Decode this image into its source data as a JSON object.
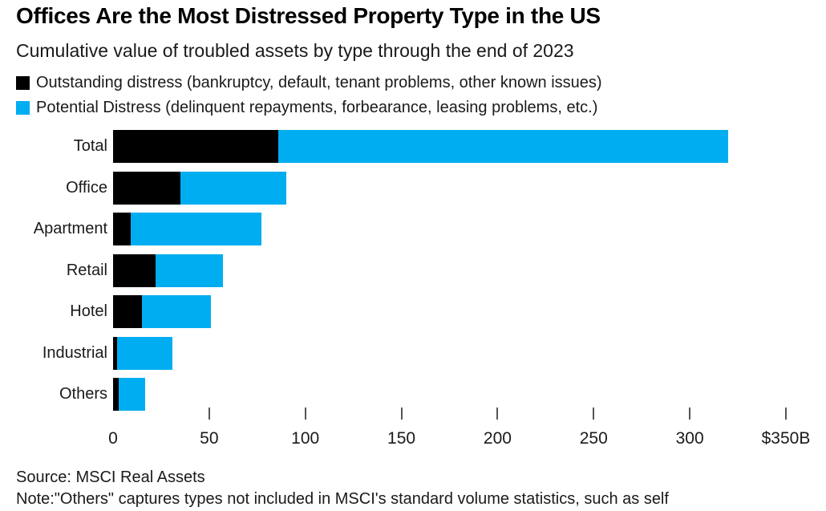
{
  "chart_data": {
    "type": "bar",
    "orientation": "horizontal",
    "stacked": true,
    "title": "Offices Are the Most Distressed Property Type in the US",
    "subtitle": "Cumulative value of troubled assets by type through the end of 2023",
    "categories": [
      "Total",
      "Office",
      "Apartment",
      "Retail",
      "Hotel",
      "Industrial",
      "Others"
    ],
    "series": [
      {
        "name": "Outstanding distress (bankruptcy, default, tenant problems, other known issues)",
        "key": "outstanding",
        "color": "#000000",
        "values": [
          86,
          35,
          9,
          22,
          15,
          2,
          3
        ]
      },
      {
        "name": "Potential Distress (delinquent repayments, forbearance, leasing problems, etc.)",
        "key": "potential",
        "color": "#00ADF0",
        "values": [
          234,
          55,
          68,
          35,
          36,
          29,
          13.5
        ]
      }
    ],
    "xlabel": "",
    "ylabel": "",
    "xlim": [
      0,
      350
    ],
    "x_ticks": [
      {
        "value": 0,
        "label": "0",
        "has_mark": false
      },
      {
        "value": 50,
        "label": "50",
        "has_mark": true
      },
      {
        "value": 100,
        "label": "100",
        "has_mark": true
      },
      {
        "value": 150,
        "label": "150",
        "has_mark": true
      },
      {
        "value": 200,
        "label": "200",
        "has_mark": true
      },
      {
        "value": 250,
        "label": "250",
        "has_mark": true
      },
      {
        "value": 300,
        "label": "300",
        "has_mark": true
      },
      {
        "value": 350,
        "label": "$350B",
        "has_mark": true
      }
    ],
    "unit": "$B",
    "grid": false,
    "legend_position": "top",
    "source": "Source: MSCI Real Assets",
    "note": "Note:\"Others\" captures types not included in MSCI's standard volume statistics, such as self"
  },
  "colors": {
    "outstanding": "#000000",
    "potential": "#00ADF0",
    "background": "#ffffff",
    "tick": "#555555",
    "text": "#1a1a1a"
  }
}
